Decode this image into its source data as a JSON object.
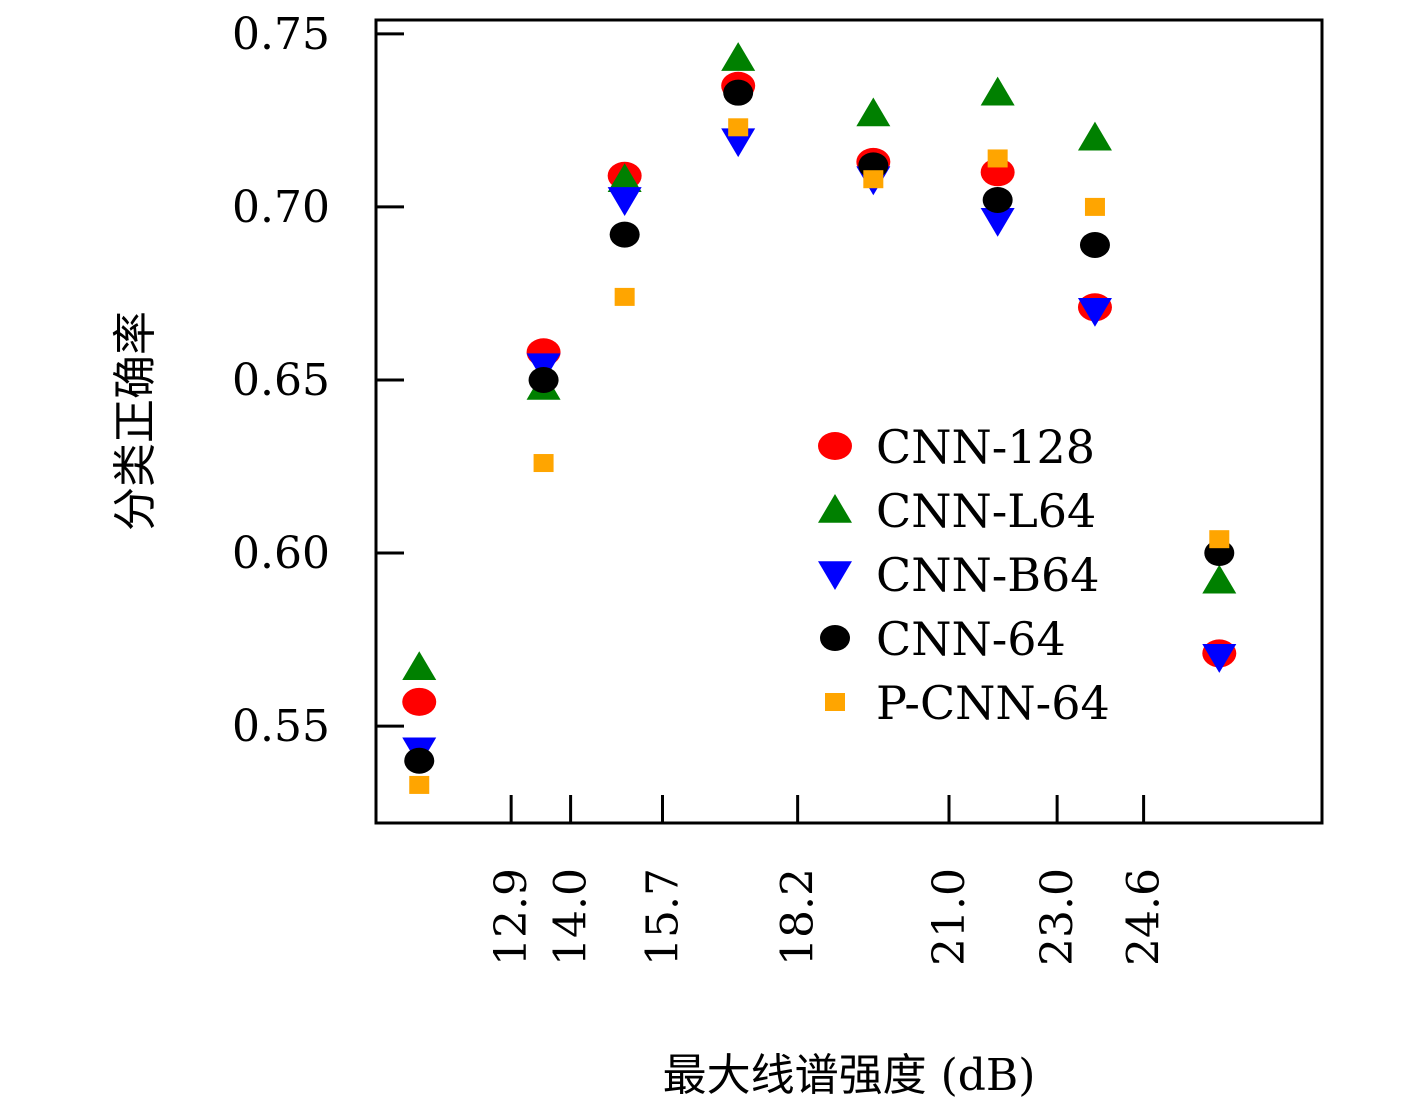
{
  "chart_data": {
    "type": "scatter",
    "xlabel": "最大线谱强度 (dB)",
    "ylabel": "分类正确率",
    "ylim": [
      0.522,
      0.754
    ],
    "xlim": [
      10.4,
      27.9
    ],
    "x_tick_labels": [
      "12.9",
      "14.0",
      "15.7",
      "18.2",
      "21.0",
      "23.0",
      "24.6"
    ],
    "x_ticks": [
      12.9,
      14.0,
      15.7,
      18.2,
      21.0,
      23.0,
      24.6
    ],
    "y_tick_labels": [
      "0.55",
      "0.60",
      "0.65",
      "0.70",
      "0.75"
    ],
    "y_ticks": [
      0.55,
      0.6,
      0.65,
      0.7,
      0.75
    ],
    "legend_position": "center-right",
    "series": [
      {
        "name": "CNN-128",
        "marker": "circle",
        "color": "#ff0000",
        "x": [
          11.2,
          13.5,
          15.0,
          17.1,
          19.6,
          21.9,
          23.7,
          26.0
        ],
        "y": [
          0.557,
          0.658,
          0.709,
          0.735,
          0.713,
          0.71,
          0.671,
          0.571
        ]
      },
      {
        "name": "CNN-L64",
        "marker": "triangle-up",
        "color": "#008000",
        "x": [
          11.2,
          13.5,
          15.0,
          17.1,
          19.6,
          21.9,
          23.7,
          26.0
        ],
        "y": [
          0.567,
          0.648,
          0.708,
          0.743,
          0.727,
          0.733,
          0.72,
          0.592
        ]
      },
      {
        "name": "CNN-B64",
        "marker": "triangle-down",
        "color": "#0000ff",
        "x": [
          11.2,
          13.5,
          15.0,
          17.1,
          19.6,
          21.9,
          23.7,
          26.0
        ],
        "y": [
          0.543,
          0.654,
          0.702,
          0.719,
          0.708,
          0.696,
          0.67,
          0.57
        ]
      },
      {
        "name": "CNN-64",
        "marker": "circle-small",
        "color": "#000000",
        "x": [
          11.2,
          13.5,
          15.0,
          17.1,
          19.6,
          21.9,
          23.7,
          26.0
        ],
        "y": [
          0.54,
          0.65,
          0.692,
          0.733,
          0.712,
          0.702,
          0.689,
          0.6
        ]
      },
      {
        "name": "P-CNN-64",
        "marker": "square",
        "color": "#ffa500",
        "x": [
          11.2,
          13.5,
          15.0,
          17.1,
          19.6,
          21.9,
          23.7,
          26.0
        ],
        "y": [
          0.533,
          0.626,
          0.674,
          0.723,
          0.708,
          0.714,
          0.7,
          0.604
        ]
      }
    ]
  }
}
